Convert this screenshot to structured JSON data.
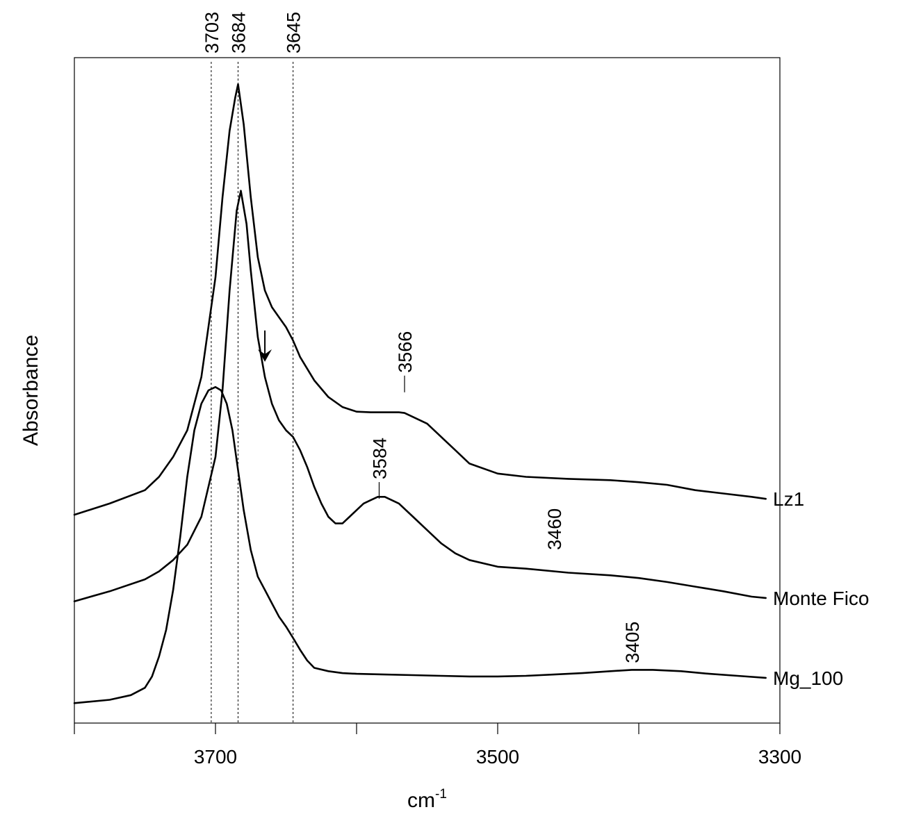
{
  "chart_data": {
    "type": "line",
    "title": "",
    "xlabel": "cm",
    "xlabel_sup": "-1",
    "ylabel": "Absorbance",
    "x_reversed": true,
    "xlim": [
      3800,
      3300
    ],
    "ylim": [
      0,
      1
    ],
    "grid": false,
    "x_ticks": [
      3700,
      3500,
      3300
    ],
    "x_minor_ticks": [
      3800,
      3700,
      3600,
      3500,
      3400,
      3300
    ],
    "reference_lines": [
      {
        "x": 3703,
        "label": "3703"
      },
      {
        "x": 3684,
        "label": "3684"
      },
      {
        "x": 3645,
        "label": "3645"
      }
    ],
    "annotations": [
      {
        "x": 3566,
        "y": 0.495,
        "label": "3566",
        "leader": true
      },
      {
        "x": 3584,
        "y": 0.335,
        "label": "3584",
        "leader": true
      },
      {
        "x": 3460,
        "y": 0.26,
        "label": "3460",
        "leader": false
      },
      {
        "x": 3405,
        "y": 0.09,
        "label": "3405",
        "leader": false
      }
    ],
    "arrow": {
      "x": 3665,
      "y_from": 0.59,
      "y_to": 0.545
    },
    "series": [
      {
        "name": "Lz1",
        "x": [
          3800,
          3775,
          3750,
          3740,
          3730,
          3720,
          3710,
          3700,
          3695,
          3690,
          3686,
          3684,
          3680,
          3675,
          3670,
          3665,
          3660,
          3655,
          3650,
          3645,
          3640,
          3630,
          3620,
          3610,
          3600,
          3590,
          3580,
          3570,
          3566,
          3560,
          3550,
          3540,
          3530,
          3520,
          3500,
          3480,
          3450,
          3420,
          3400,
          3380,
          3360,
          3340,
          3320,
          3310
        ],
        "y": [
          0.313,
          0.33,
          0.35,
          0.37,
          0.4,
          0.44,
          0.52,
          0.67,
          0.79,
          0.89,
          0.94,
          0.96,
          0.9,
          0.79,
          0.7,
          0.65,
          0.625,
          0.61,
          0.595,
          0.575,
          0.55,
          0.515,
          0.49,
          0.475,
          0.468,
          0.467,
          0.467,
          0.467,
          0.466,
          0.46,
          0.45,
          0.43,
          0.41,
          0.39,
          0.375,
          0.37,
          0.367,
          0.365,
          0.362,
          0.358,
          0.35,
          0.345,
          0.34,
          0.337
        ]
      },
      {
        "name": "Monte Fico",
        "x": [
          3800,
          3775,
          3750,
          3740,
          3730,
          3720,
          3710,
          3700,
          3695,
          3690,
          3685,
          3682,
          3678,
          3675,
          3670,
          3665,
          3660,
          3655,
          3650,
          3645,
          3640,
          3635,
          3630,
          3625,
          3620,
          3615,
          3610,
          3605,
          3600,
          3595,
          3590,
          3585,
          3580,
          3570,
          3560,
          3550,
          3540,
          3530,
          3520,
          3500,
          3480,
          3450,
          3420,
          3400,
          3380,
          3360,
          3340,
          3320,
          3310
        ],
        "y": [
          0.183,
          0.198,
          0.216,
          0.228,
          0.245,
          0.268,
          0.31,
          0.4,
          0.5,
          0.65,
          0.77,
          0.8,
          0.75,
          0.68,
          0.58,
          0.52,
          0.48,
          0.455,
          0.44,
          0.43,
          0.41,
          0.385,
          0.355,
          0.33,
          0.31,
          0.3,
          0.3,
          0.31,
          0.32,
          0.33,
          0.335,
          0.34,
          0.34,
          0.33,
          0.31,
          0.29,
          0.27,
          0.255,
          0.245,
          0.235,
          0.232,
          0.226,
          0.222,
          0.218,
          0.212,
          0.205,
          0.198,
          0.19,
          0.188
        ]
      },
      {
        "name": "Mg_100",
        "x": [
          3800,
          3775,
          3760,
          3750,
          3745,
          3740,
          3735,
          3730,
          3725,
          3720,
          3715,
          3710,
          3705,
          3700,
          3696,
          3692,
          3688,
          3684,
          3680,
          3675,
          3670,
          3665,
          3660,
          3655,
          3650,
          3645,
          3640,
          3635,
          3630,
          3620,
          3610,
          3600,
          3580,
          3560,
          3540,
          3520,
          3500,
          3480,
          3460,
          3440,
          3420,
          3405,
          3390,
          3370,
          3350,
          3330,
          3310
        ],
        "y": [
          0.03,
          0.035,
          0.042,
          0.053,
          0.07,
          0.1,
          0.14,
          0.2,
          0.28,
          0.37,
          0.44,
          0.48,
          0.5,
          0.505,
          0.5,
          0.48,
          0.44,
          0.38,
          0.32,
          0.26,
          0.22,
          0.2,
          0.18,
          0.16,
          0.145,
          0.128,
          0.11,
          0.094,
          0.083,
          0.078,
          0.075,
          0.074,
          0.073,
          0.072,
          0.071,
          0.07,
          0.07,
          0.071,
          0.073,
          0.075,
          0.078,
          0.08,
          0.08,
          0.078,
          0.074,
          0.071,
          0.068
        ]
      }
    ]
  }
}
